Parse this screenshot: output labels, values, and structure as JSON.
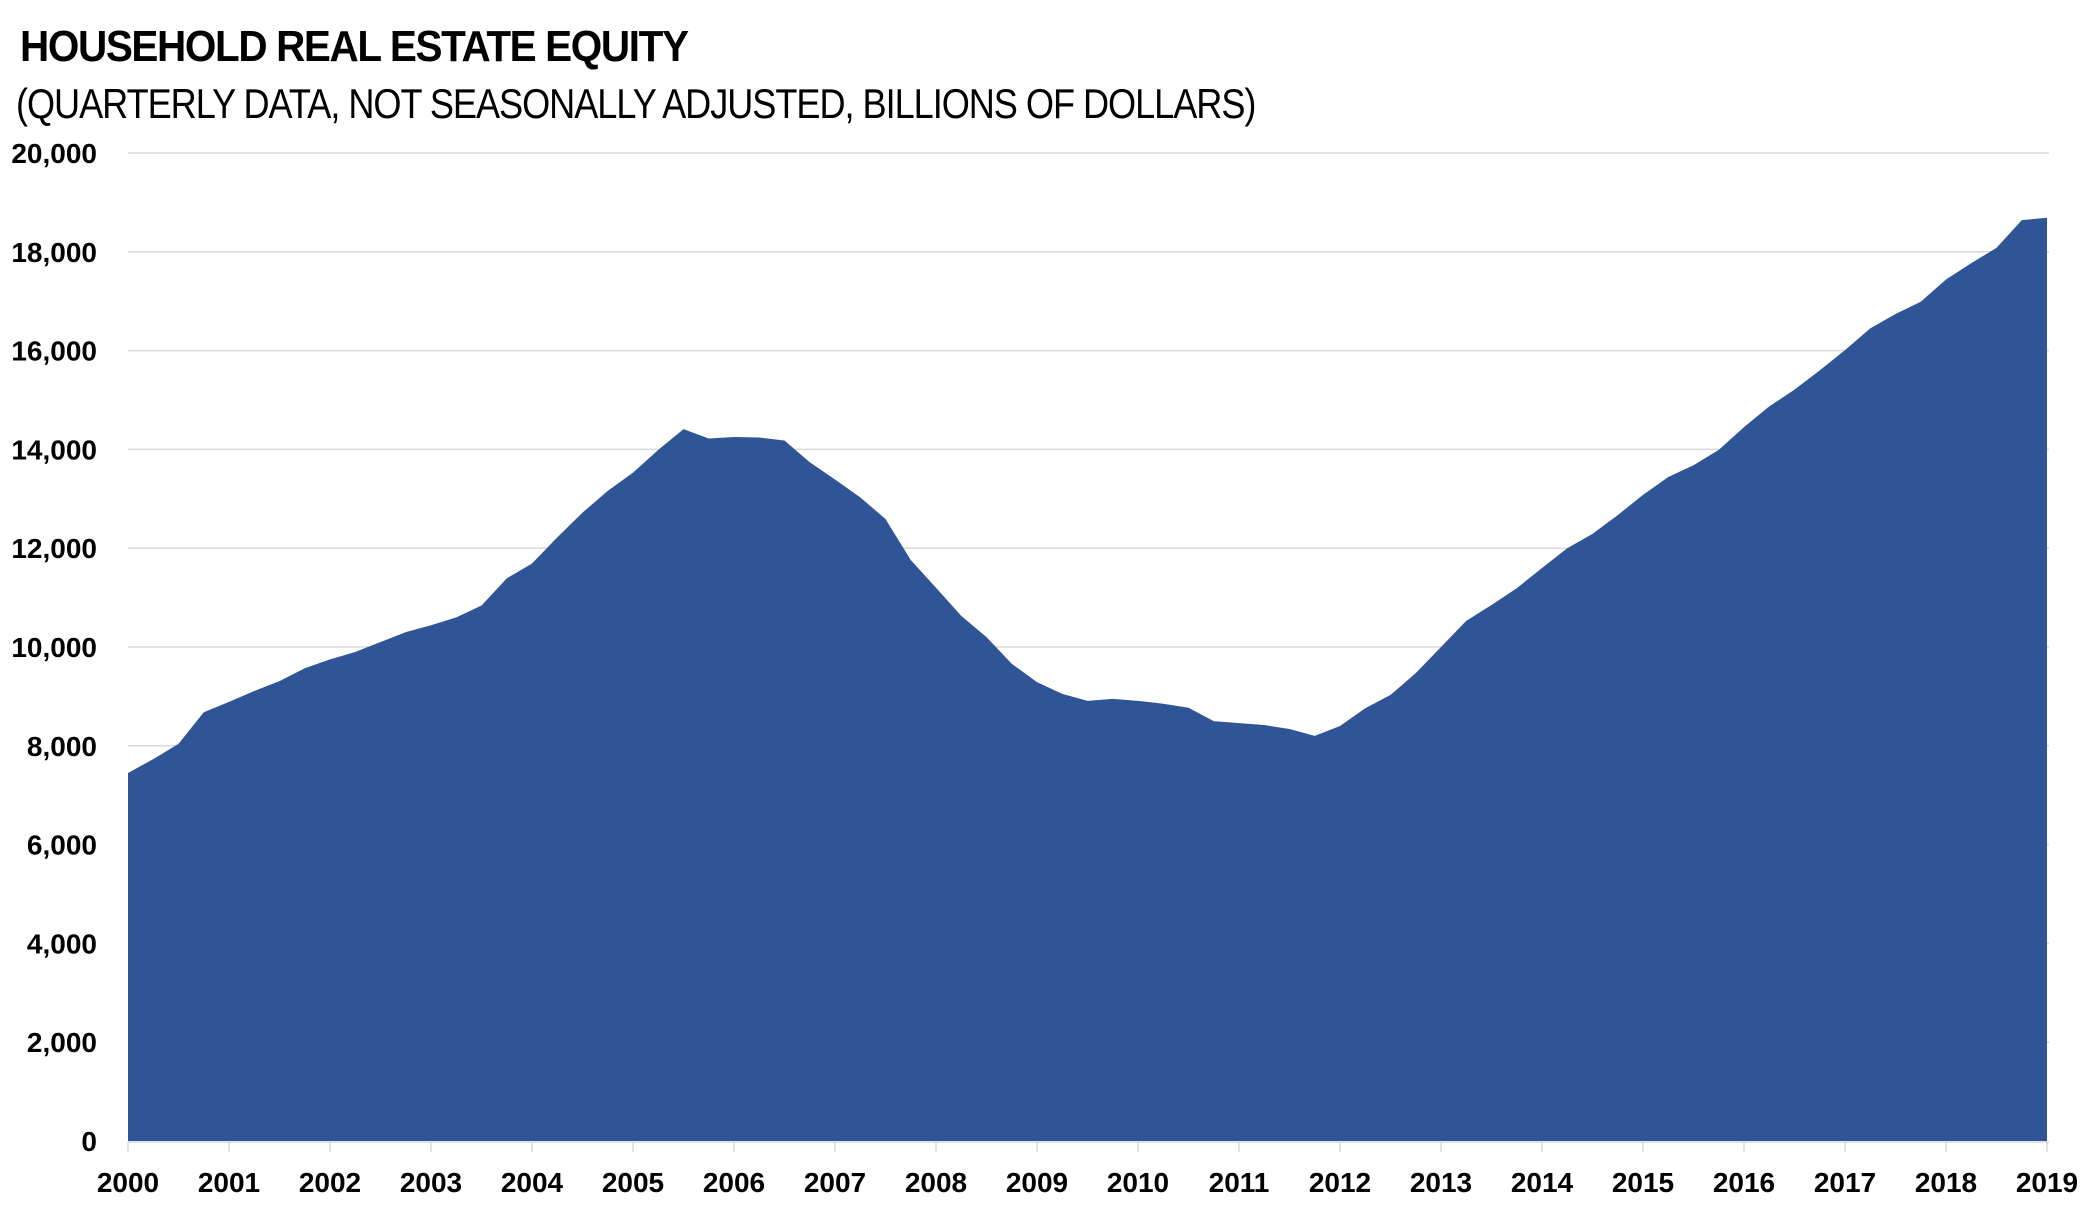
{
  "chart_data": {
    "type": "area",
    "title": "HOUSEHOLD REAL ESTATE EQUITY",
    "subtitle": "(QUARTERLY DATA, NOT SEASONALLY ADJUSTED, BILLIONS OF DOLLARS)",
    "xlabel": "",
    "ylabel": "",
    "x_frequency": "quarterly",
    "x_start": "2000-Q1",
    "x_end": "2019-Q1",
    "xlim": [
      2000,
      2019
    ],
    "ylim": [
      0,
      20000
    ],
    "grid": true,
    "legend": "none",
    "color": "#2F5597",
    "y_ticks": [
      0,
      2000,
      4000,
      6000,
      8000,
      10000,
      12000,
      14000,
      16000,
      18000,
      20000
    ],
    "y_tick_labels": [
      "0",
      "2,000",
      "4,000",
      "6,000",
      "8,000",
      "10,000",
      "12,000",
      "14,000",
      "16,000",
      "18,000",
      "20,000"
    ],
    "x_ticks": [
      2000,
      2001,
      2002,
      2003,
      2004,
      2005,
      2006,
      2007,
      2008,
      2009,
      2010,
      2011,
      2012,
      2013,
      2014,
      2015,
      2016,
      2017,
      2018,
      2019
    ],
    "x_tick_labels": [
      "2000",
      "2001",
      "2002",
      "2003",
      "2004",
      "2005",
      "2006",
      "2007",
      "2008",
      "2009",
      "2010",
      "2011",
      "2012",
      "2013",
      "2014",
      "2015",
      "2016",
      "2017",
      "2018",
      "2019"
    ],
    "series": [
      {
        "name": "Household Real Estate Equity",
        "values": [
          7450,
          7730,
          8040,
          8680,
          8890,
          9110,
          9310,
          9570,
          9750,
          9900,
          10100,
          10300,
          10440,
          10600,
          10840,
          11390,
          11690,
          12220,
          12720,
          13160,
          13530,
          13990,
          14410,
          14220,
          14250,
          14240,
          14180,
          13740,
          13390,
          13030,
          12590,
          11760,
          11200,
          10630,
          10200,
          9660,
          9290,
          9050,
          8910,
          8950,
          8910,
          8850,
          8770,
          8500,
          8460,
          8420,
          8340,
          8200,
          8400,
          8760,
          9030,
          9470,
          10000,
          10530,
          10850,
          11190,
          11600,
          12000,
          12290,
          12670,
          13080,
          13440,
          13680,
          13990,
          14450,
          14870,
          15210,
          15600,
          16010,
          16450,
          16740,
          16990,
          17440,
          17770,
          18080,
          18640,
          18690
        ]
      }
    ]
  }
}
